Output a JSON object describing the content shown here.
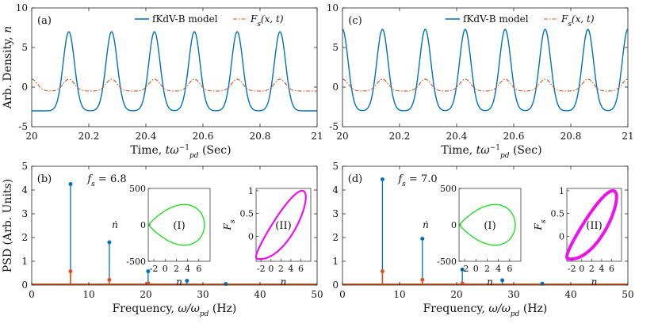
{
  "chart_data": [
    {
      "panel": "(a)",
      "type": "line",
      "xlabel": "Time, tω_pd^{-1} (Sec)",
      "ylabel": "Arb. Density, n",
      "xlim": [
        20,
        21
      ],
      "ylim": [
        -5,
        10
      ],
      "xticks": [
        "20",
        "20.2",
        "20.4",
        "20.6",
        "20.8",
        "21"
      ],
      "yticks": [
        "-5",
        "0",
        "5",
        "10"
      ],
      "legend": [
        "fKdV-B model",
        "F_s(x,t)"
      ],
      "series": [
        {
          "name": "fKdV-B model",
          "color": "#0072BD",
          "min": -3,
          "max": 7,
          "peaks": [
            20.13,
            20.28,
            20.43,
            20.57,
            20.72,
            20.87
          ]
        },
        {
          "name": "F_s(x,t)",
          "color": "#D95319",
          "min": -0.5,
          "max": 1,
          "peaks": [
            20.0,
            20.13,
            20.28,
            20.43,
            20.57,
            20.72,
            20.87
          ]
        }
      ]
    },
    {
      "panel": "(c)",
      "type": "line",
      "xlabel": "Time, tω_pd^{-1} (Sec)",
      "ylabel": "",
      "xlim": [
        20,
        21
      ],
      "ylim": [
        -5,
        10
      ],
      "xticks": [
        "20",
        "20.2",
        "20.4",
        "20.6",
        "20.8",
        "21"
      ],
      "yticks": [
        "-5",
        "0",
        "5",
        "10"
      ],
      "legend": [
        "fKdV-B model",
        "F_s(x,t)"
      ],
      "series": [
        {
          "name": "fKdV-B model",
          "color": "#0072BD",
          "min": -3,
          "max": 7.3,
          "peaks": [
            20.0,
            20.14,
            20.29,
            20.43,
            20.57,
            20.71,
            20.86,
            21.0
          ]
        },
        {
          "name": "F_s(x,t)",
          "color": "#D95319",
          "min": -0.5,
          "max": 1,
          "peaks": [
            20.0,
            20.14,
            20.29,
            20.43,
            20.57,
            20.71,
            20.86,
            21.0
          ]
        }
      ]
    },
    {
      "panel": "(b)",
      "type": "stem",
      "xlabel": "Frequency, ω/ω_pd (Hz)",
      "ylabel": "PSD (Arb. Units)",
      "xlim": [
        0,
        50
      ],
      "ylim": [
        0,
        5
      ],
      "xticks": [
        "0",
        "10",
        "20",
        "30",
        "40",
        "50"
      ],
      "yticks": [
        "0",
        "1",
        "2",
        "3",
        "4",
        "5"
      ],
      "annotation": "f_s = 6.8",
      "series": [
        {
          "name": "fKdV-B model",
          "color": "#0072BD",
          "x": [
            6.8,
            13.6,
            20.4,
            27.2,
            34.0
          ],
          "y": [
            4.25,
            1.8,
            0.58,
            0.18,
            0.05
          ]
        },
        {
          "name": "F_s(x,t)",
          "color": "#D95319",
          "x": [
            6.8,
            13.6,
            20.4
          ],
          "y": [
            0.58,
            0.22,
            0.07
          ]
        }
      ],
      "insets": [
        {
          "label": "(I)",
          "xlabel": "n",
          "ylabel": "ṅ",
          "color": "#22DD22",
          "xlim": [
            -3,
            8
          ],
          "ylim": [
            -500,
            500
          ],
          "xticks": [
            "-2",
            "0",
            "2",
            "4",
            "6"
          ],
          "yticks": [
            "500",
            "0",
            "-500"
          ]
        },
        {
          "label": "(II)",
          "xlabel": "n",
          "ylabel": "F_s",
          "color": "#EE11EE",
          "xlim": [
            -3,
            8
          ],
          "ylim": [
            -0.55,
            1.05
          ],
          "xticks": [
            "-2",
            "0",
            "2",
            "4",
            "6"
          ],
          "yticks": [
            "1",
            "0.5",
            "0"
          ]
        }
      ]
    },
    {
      "panel": "(d)",
      "type": "stem",
      "xlabel": "Frequency, ω/ω_pd (Hz)",
      "ylabel": "",
      "xlim": [
        0,
        50
      ],
      "ylim": [
        0,
        5
      ],
      "xticks": [
        "0",
        "10",
        "20",
        "30",
        "40",
        "50"
      ],
      "yticks": [
        "0",
        "1",
        "2",
        "3",
        "4",
        "5"
      ],
      "annotation": "f_s = 7.0",
      "series": [
        {
          "name": "fKdV-B model",
          "color": "#0072BD",
          "x": [
            7.0,
            14.0,
            21.0,
            28.0,
            35.0
          ],
          "y": [
            4.45,
            1.95,
            0.65,
            0.2,
            0.06
          ]
        },
        {
          "name": "F_s(x,t)",
          "color": "#D95319",
          "x": [
            7.0,
            14.0,
            21.0
          ],
          "y": [
            0.58,
            0.22,
            0.07
          ]
        }
      ],
      "insets": [
        {
          "label": "(I)",
          "xlabel": "n",
          "ylabel": "ṅ",
          "color": "#22DD22",
          "xlim": [
            -3,
            8
          ],
          "ylim": [
            -500,
            500
          ],
          "xticks": [
            "-2",
            "0",
            "2",
            "4",
            "6"
          ],
          "yticks": [
            "500",
            "0",
            "-500"
          ]
        },
        {
          "label": "(II)",
          "xlabel": "n",
          "ylabel": "F_s",
          "color": "#EE11EE",
          "xlim": [
            -3,
            8
          ],
          "ylim": [
            -0.55,
            1.05
          ],
          "xticks": [
            "-2",
            "0",
            "2",
            "4",
            "6"
          ],
          "yticks": [
            "1",
            "0.5",
            "0"
          ]
        }
      ]
    }
  ]
}
